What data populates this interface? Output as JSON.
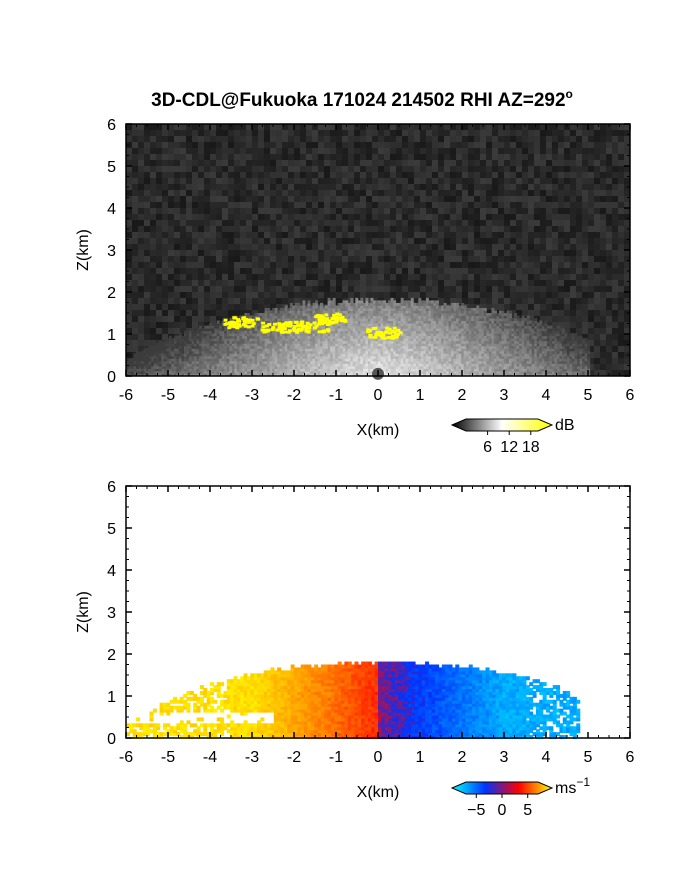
{
  "title": "3D-CDL@Fukuoka 171024 214502 RHI AZ=292",
  "title_degree": "o",
  "chart_data": [
    {
      "type": "heatmap",
      "name": "backscatter",
      "xlabel": "X(km)",
      "ylabel": "Z(km)",
      "xlim": [
        -6,
        6
      ],
      "ylim": [
        0,
        6
      ],
      "xticks": [
        "-6",
        "-5",
        "-4",
        "-3",
        "-2",
        "-1",
        "0",
        "1",
        "2",
        "3",
        "4",
        "5",
        "6"
      ],
      "yticks": [
        "0",
        "1",
        "2",
        "3",
        "4",
        "5",
        "6"
      ],
      "background_color": "#2a2a2a",
      "colorbar": {
        "unit": "dB",
        "ticks": [
          "6",
          "12",
          "18"
        ],
        "tick_values": [
          6,
          12,
          18
        ],
        "range": [
          0,
          20
        ],
        "colors": [
          "#000000",
          "#ffffff",
          "#ffff00"
        ]
      },
      "features": {
        "echo_top_km": 1.5,
        "echo_xrange_km": [
          -6,
          5
        ],
        "saturated_patches_km": [
          [
            -3.3,
            1.3
          ],
          [
            -2.4,
            1.2
          ],
          [
            -1.6,
            1.2
          ],
          [
            -1.2,
            1.4
          ],
          [
            0.1,
            1.05
          ]
        ]
      }
    },
    {
      "type": "heatmap",
      "name": "doppler_velocity",
      "xlabel": "X(km)",
      "ylabel": "Z(km)",
      "xlim": [
        -6,
        6
      ],
      "ylim": [
        0,
        6
      ],
      "xticks": [
        "-6",
        "-5",
        "-4",
        "-3",
        "-2",
        "-1",
        "0",
        "1",
        "2",
        "3",
        "4",
        "5",
        "6"
      ],
      "yticks": [
        "0",
        "1",
        "2",
        "3",
        "4",
        "5",
        "6"
      ],
      "background_color": "#ffffff",
      "colorbar": {
        "unit": "ms",
        "unit_exponent": "−1",
        "ticks": [
          "−5",
          "0",
          "5"
        ],
        "tick_values": [
          -5,
          0,
          5
        ],
        "range": [
          -7,
          7
        ],
        "colors": [
          "#00ffff",
          "#0033ff",
          "#ff0000",
          "#ffff00"
        ]
      },
      "features": {
        "echo_top_km": 1.7,
        "echo_xrange_km": [
          -6,
          4.8
        ],
        "velocity_at_left_edge_ms": 6,
        "velocity_at_right_edge_ms": -5
      }
    }
  ]
}
